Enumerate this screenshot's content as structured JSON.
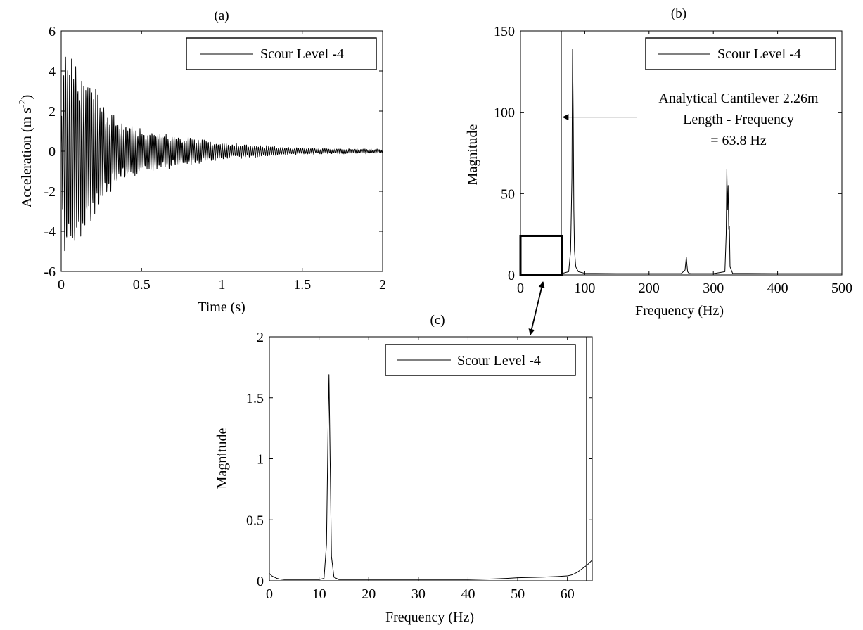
{
  "chart_data": [
    {
      "id": "a",
      "type": "line",
      "panel_label": "(a)",
      "xlabel": "Time (s)",
      "ylabel": "Acceleration (m s^-2)",
      "xlim": [
        0,
        2
      ],
      "ylim": [
        -6,
        6
      ],
      "xticks": [
        0,
        0.5,
        1,
        1.5,
        2
      ],
      "xtick_labels": [
        "0",
        "0.5",
        "1",
        "1.5",
        "2"
      ],
      "yticks": [
        -6,
        -4,
        -2,
        0,
        2,
        4,
        6
      ],
      "ytick_labels": [
        "-6",
        "-4",
        "-2",
        "0",
        "2",
        "4",
        "6"
      ],
      "grid": false,
      "legend": {
        "position": "top-right",
        "entries": [
          "Scour Level -4"
        ]
      },
      "series": [
        {
          "name": "Scour Level -4",
          "kind": "decaying_oscillation",
          "envelope": {
            "t": [
              0,
              0.02,
              0.07,
              0.12,
              0.18,
              0.25,
              0.35,
              0.5,
              0.65,
              0.8,
              1.0,
              1.2,
              1.5,
              1.8,
              2.0
            ],
            "amplitude": [
              1.5,
              5.4,
              5.4,
              4.4,
              4.0,
              2.7,
              1.6,
              1.1,
              0.9,
              0.7,
              0.4,
              0.3,
              0.15,
              0.12,
              0.1
            ]
          },
          "dominant_frequency_hz": 80
        }
      ]
    },
    {
      "id": "b",
      "type": "line",
      "panel_label": "(b)",
      "xlabel": "Frequency (Hz)",
      "ylabel": "Magnitude",
      "xlim": [
        0,
        500
      ],
      "ylim": [
        0,
        150
      ],
      "xticks": [
        0,
        100,
        200,
        300,
        400,
        500
      ],
      "xtick_labels": [
        "0",
        "100",
        "200",
        "300",
        "400",
        "500"
      ],
      "yticks": [
        0,
        50,
        100,
        150
      ],
      "ytick_labels": [
        "0",
        "50",
        "100",
        "150"
      ],
      "grid": false,
      "legend": {
        "position": "top-right",
        "entries": [
          "Scour Level -4"
        ]
      },
      "series": [
        {
          "name": "Scour Level -4",
          "x": [
            0,
            10,
            20,
            40,
            60,
            75,
            78,
            80,
            81,
            82,
            83,
            84,
            86,
            90,
            100,
            150,
            200,
            250,
            256,
            258,
            259,
            260,
            262,
            265,
            300,
            318,
            320,
            321,
            322,
            323,
            324,
            325,
            326,
            330,
            400,
            500
          ],
          "y": [
            0.5,
            0.4,
            0.3,
            0.3,
            0.4,
            2,
            15,
            60,
            139,
            100,
            40,
            15,
            5,
            2,
            1,
            0.8,
            0.8,
            0.8,
            3,
            11,
            6,
            2,
            1,
            0.8,
            0.8,
            2,
            25,
            65,
            40,
            55,
            28,
            30,
            5,
            1,
            0.8,
            0.8
          ]
        }
      ],
      "vertical_line_x": 63.8,
      "zoom_box": {
        "x": [
          0,
          65
        ],
        "y": [
          0,
          24
        ]
      },
      "annotation": {
        "lines": [
          "Analytical Cantilever 2.26m",
          "Length - Frequency",
          "= 63.8 Hz"
        ],
        "arrow_target_x": 63.8,
        "arrow_target_y": 97
      }
    },
    {
      "id": "c",
      "type": "line",
      "panel_label": "(c)",
      "xlabel": "Frequency (Hz)",
      "ylabel": "Magnitude",
      "xlim": [
        0,
        65
      ],
      "ylim": [
        0,
        2
      ],
      "xticks": [
        0,
        10,
        20,
        30,
        40,
        50,
        60
      ],
      "xtick_labels": [
        "0",
        "10",
        "20",
        "30",
        "40",
        "50",
        "60"
      ],
      "yticks": [
        0,
        0.5,
        1,
        1.5,
        2
      ],
      "ytick_labels": [
        "0",
        "0.5",
        "1",
        "1.5",
        "2"
      ],
      "grid": false,
      "legend": {
        "position": "top-right",
        "entries": [
          "Scour Level -4"
        ]
      },
      "series": [
        {
          "name": "Scour Level -4",
          "x": [
            0,
            0.5,
            1,
            1.5,
            2,
            3,
            5,
            8,
            10,
            11,
            11.5,
            11.8,
            12,
            12.2,
            12.5,
            13,
            14,
            20,
            30,
            40,
            45,
            48,
            50,
            55,
            58,
            60,
            61,
            62,
            63,
            64,
            65
          ],
          "y": [
            0.06,
            0.04,
            0.03,
            0.02,
            0.015,
            0.01,
            0.01,
            0.01,
            0.01,
            0.02,
            0.3,
            1.2,
            1.69,
            1.1,
            0.2,
            0.03,
            0.01,
            0.01,
            0.01,
            0.01,
            0.015,
            0.02,
            0.025,
            0.03,
            0.035,
            0.04,
            0.05,
            0.07,
            0.1,
            0.13,
            0.17
          ]
        }
      ],
      "vertical_line_x": 63.8
    }
  ],
  "connector_arrow": {
    "from_panel": "b",
    "to_panel": "c"
  }
}
